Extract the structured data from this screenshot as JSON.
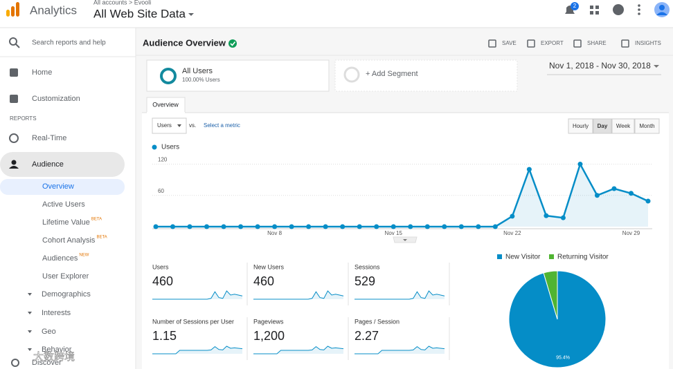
{
  "header": {
    "product": "Analytics",
    "breadcrumb": "All accounts > Evooli",
    "view": "All Web Site Data",
    "notification_count": "2"
  },
  "sidebar": {
    "search_placeholder": "Search reports and help",
    "top_items": [
      "Home",
      "Customization"
    ],
    "section_label": "REPORTS",
    "reports": [
      "Real-Time",
      "Audience"
    ],
    "audience_items": [
      {
        "label": "Overview"
      },
      {
        "label": "Active Users"
      },
      {
        "label": "Lifetime Value",
        "badge": "BETA"
      },
      {
        "label": "Cohort Analysis",
        "badge": "BETA"
      },
      {
        "label": "Audiences",
        "badge": "NEW"
      },
      {
        "label": "User Explorer"
      }
    ],
    "audience_groups": [
      "Demographics",
      "Interests",
      "Geo",
      "Behavior"
    ],
    "footer_item": "Discover"
  },
  "page": {
    "title": "Audience Overview",
    "actions": [
      "SAVE",
      "EXPORT",
      "SHARE",
      "INSIGHTS"
    ],
    "segments": {
      "selected": {
        "name": "All Users",
        "detail": "100.00% Users"
      },
      "add": "+ Add Segment"
    },
    "date_range": "Nov 1, 2018 - Nov 30, 2018",
    "tab": "Overview",
    "metric_select": "Users",
    "vs": "vs.",
    "compare_link": "Select a metric",
    "intervals": [
      "Hourly",
      "Day",
      "Week",
      "Month"
    ],
    "active_interval": 1
  },
  "metrics": [
    {
      "label": "Users",
      "value": "460"
    },
    {
      "label": "New Users",
      "value": "460"
    },
    {
      "label": "Sessions",
      "value": "529"
    },
    {
      "label": "Number of Sessions per User",
      "value": "1.15"
    },
    {
      "label": "Pageviews",
      "value": "1,200"
    },
    {
      "label": "Pages / Session",
      "value": "2.27"
    }
  ],
  "chart_data": [
    {
      "type": "line",
      "categories": [
        null,
        null,
        null,
        null,
        null,
        null,
        null,
        "Nov 8",
        null,
        null,
        null,
        null,
        null,
        null,
        "Nov 15",
        null,
        null,
        null,
        null,
        null,
        null,
        "Nov 22",
        null,
        null,
        null,
        null,
        null,
        null,
        "Nov 29",
        null
      ],
      "series": [
        {
          "name": "Users",
          "color": "#058dc7",
          "values": [
            0,
            0,
            0,
            0,
            0,
            0,
            0,
            0,
            0,
            0,
            0,
            0,
            0,
            0,
            0,
            0,
            0,
            0,
            0,
            0,
            0,
            20,
            110,
            21,
            17,
            120,
            60,
            73,
            64,
            49
          ]
        }
      ],
      "ylim": [
        0,
        130
      ],
      "yticks": [
        60,
        120
      ],
      "grid": true
    },
    {
      "type": "pie",
      "categories": [
        "New Visitor",
        "Returning Visitor"
      ],
      "values": [
        95.4,
        4.6
      ],
      "value_labels": [
        "95.4%",
        null
      ],
      "colors": [
        "#058dc7",
        "#50b432"
      ]
    }
  ],
  "watermark": "大数跨境"
}
